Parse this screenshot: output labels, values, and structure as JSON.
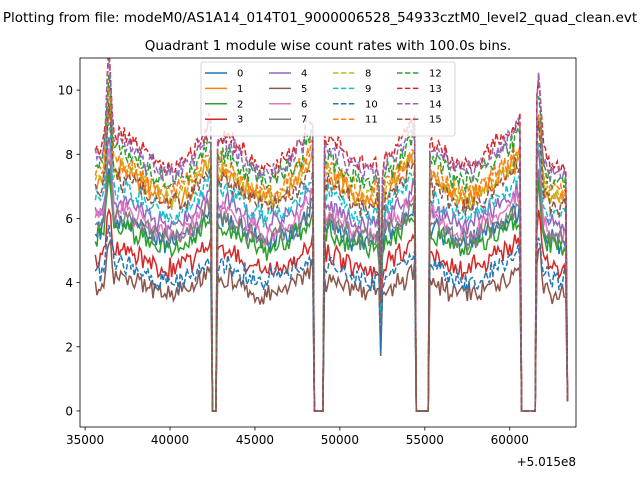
{
  "chart_data": {
    "type": "line",
    "title": "Quadrant 1 module wise count rates with 100.0s bins.",
    "suptitle": "Plotting from file: modeM0/AS1A14_014T01_9000006528_54933cztM0_level2_quad_clean.evt",
    "xlabel": "",
    "ylabel": "",
    "x_offset_label": "+5.015e8",
    "xlim": [
      34700,
      63900
    ],
    "ylim": [
      -0.5,
      11.0
    ],
    "x_ticks": [
      35000,
      40000,
      45000,
      50000,
      55000,
      60000
    ],
    "x_tick_labels": [
      "35000",
      "40000",
      "45000",
      "50000",
      "55000",
      "60000"
    ],
    "y_ticks": [
      0,
      2,
      4,
      6,
      8,
      10
    ],
    "y_tick_labels": [
      "0",
      "2",
      "4",
      "6",
      "8",
      "10"
    ],
    "legend_location": "upper center",
    "x_start": 35600,
    "x_end": 63400,
    "bin_size": 100,
    "gaps": [
      [
        42500,
        42700
      ],
      [
        48500,
        49000
      ],
      [
        54500,
        55200
      ],
      [
        60700,
        61500
      ]
    ],
    "peaks": [
      [
        36400,
        1.35
      ],
      [
        61700,
        1.3
      ]
    ],
    "dip": [
      52400,
      0.5
    ],
    "series": [
      {
        "name": "0",
        "color": "#1f77b4",
        "style": "solid",
        "base": 5.6
      },
      {
        "name": "1",
        "color": "#ff7f0e",
        "style": "solid",
        "base": 7.0
      },
      {
        "name": "2",
        "color": "#2ca02c",
        "style": "solid",
        "base": 5.4
      },
      {
        "name": "3",
        "color": "#d62728",
        "style": "solid",
        "base": 4.7
      },
      {
        "name": "4",
        "color": "#9467bd",
        "style": "solid",
        "base": 6.2
      },
      {
        "name": "5",
        "color": "#8c564b",
        "style": "solid",
        "base": 3.9
      },
      {
        "name": "6",
        "color": "#e377c2",
        "style": "solid",
        "base": 5.9
      },
      {
        "name": "7",
        "color": "#7f7f7f",
        "style": "solid",
        "base": 5.7
      },
      {
        "name": "8",
        "color": "#bcbd22",
        "style": "dashed",
        "base": 7.1
      },
      {
        "name": "9",
        "color": "#17becf",
        "style": "dashed",
        "base": 6.5
      },
      {
        "name": "10",
        "color": "#1f77b4",
        "style": "dashed",
        "base": 4.3
      },
      {
        "name": "11",
        "color": "#ff7f0e",
        "style": "dashed",
        "base": 7.3
      },
      {
        "name": "12",
        "color": "#2ca02c",
        "style": "dashed",
        "base": 7.6
      },
      {
        "name": "13",
        "color": "#d62728",
        "style": "dashed",
        "base": 8.1
      },
      {
        "name": "14",
        "color": "#9467bd",
        "style": "dashed",
        "base": 7.9
      },
      {
        "name": "15",
        "color": "#8c564b",
        "style": "dashed",
        "base": 6.8
      }
    ]
  }
}
